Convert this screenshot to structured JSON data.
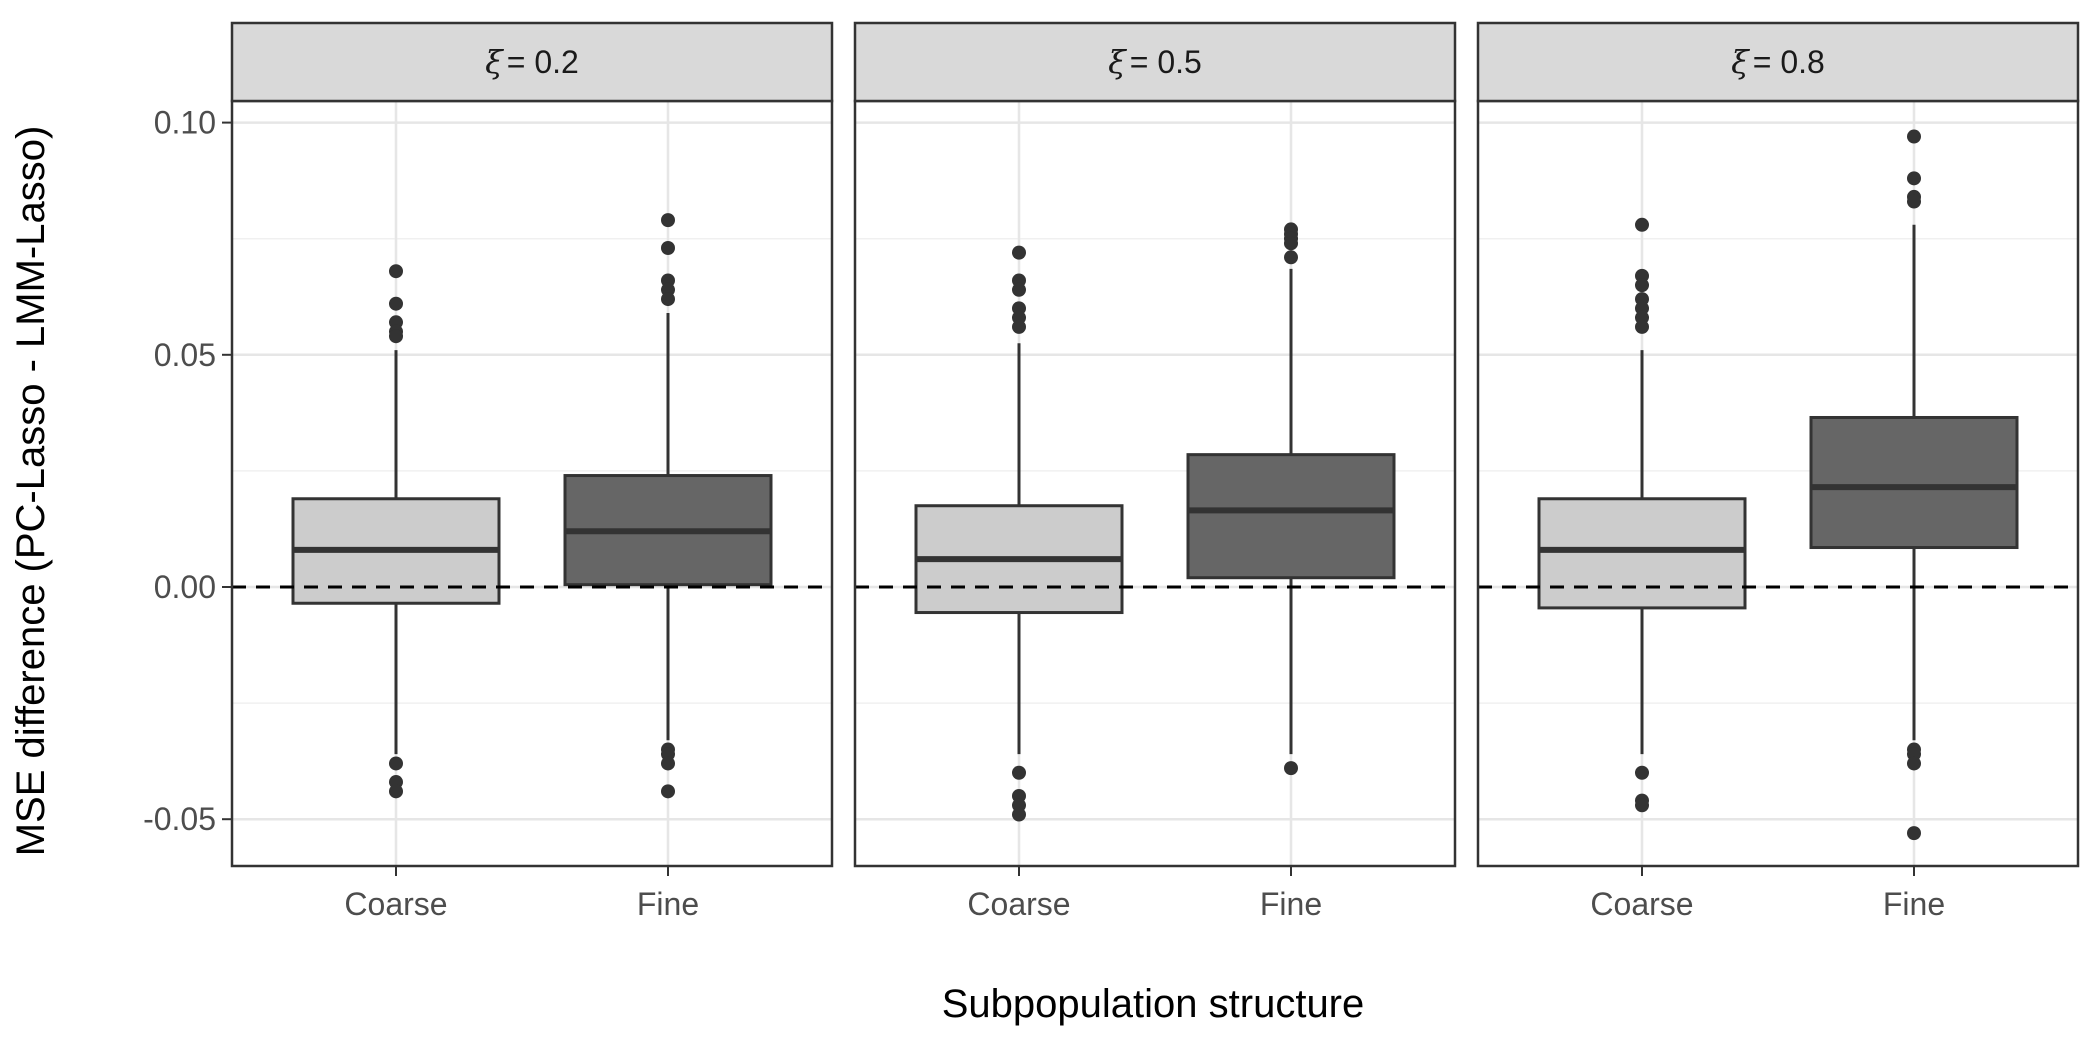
{
  "chart_data": {
    "type": "boxplot",
    "xlabel": "Subpopulation structure",
    "ylabel": "MSE difference (PC-Lasso - LMM-Lasso)",
    "ylim": [
      -0.06,
      0.105
    ],
    "yticks": [
      -0.05,
      0.0,
      0.05,
      0.1
    ],
    "ytick_labels": [
      "-0.05",
      "0.00",
      "0.05",
      "0.10"
    ],
    "categories": [
      "Coarse",
      "Fine"
    ],
    "reference_line": 0,
    "grid": true,
    "colors": {
      "Coarse": "#cccccc",
      "Fine": "#666666",
      "outline": "#333333"
    },
    "panels": [
      {
        "strip_symbol": "ξ",
        "strip_label": "= 0.2",
        "boxes": [
          {
            "category": "Coarse",
            "lower_whisker": -0.036,
            "q1": -0.0035,
            "median": 0.008,
            "q3": 0.019,
            "upper_whisker": 0.051,
            "outliers": [
              0.068,
              0.061,
              0.057,
              0.055,
              0.054,
              -0.038,
              -0.042,
              -0.044
            ]
          },
          {
            "category": "Fine",
            "lower_whisker": -0.033,
            "q1": 0.0005,
            "median": 0.012,
            "q3": 0.024,
            "upper_whisker": 0.059,
            "outliers": [
              0.079,
              0.073,
              0.066,
              0.064,
              0.062,
              -0.035,
              -0.036,
              -0.038,
              -0.044
            ]
          }
        ]
      },
      {
        "strip_symbol": "ξ",
        "strip_label": "= 0.5",
        "boxes": [
          {
            "category": "Coarse",
            "lower_whisker": -0.036,
            "q1": -0.0055,
            "median": 0.006,
            "q3": 0.0175,
            "upper_whisker": 0.0525,
            "outliers": [
              0.072,
              0.066,
              0.064,
              0.06,
              0.058,
              0.056,
              -0.04,
              -0.045,
              -0.047,
              -0.049
            ]
          },
          {
            "category": "Fine",
            "lower_whisker": -0.036,
            "q1": 0.002,
            "median": 0.0165,
            "q3": 0.0285,
            "upper_whisker": 0.0685,
            "outliers": [
              0.077,
              0.076,
              0.075,
              0.074,
              0.071,
              -0.039
            ]
          }
        ]
      },
      {
        "strip_symbol": "ξ",
        "strip_label": "= 0.8",
        "boxes": [
          {
            "category": "Coarse",
            "lower_whisker": -0.036,
            "q1": -0.0045,
            "median": 0.008,
            "q3": 0.019,
            "upper_whisker": 0.051,
            "outliers": [
              0.078,
              0.067,
              0.065,
              0.062,
              0.06,
              0.058,
              0.056,
              -0.04,
              -0.046,
              -0.047
            ]
          },
          {
            "category": "Fine",
            "lower_whisker": -0.033,
            "q1": 0.0085,
            "median": 0.0215,
            "q3": 0.0365,
            "upper_whisker": 0.078,
            "outliers": [
              0.097,
              0.088,
              0.084,
              0.083,
              -0.035,
              -0.036,
              -0.038,
              -0.053
            ]
          }
        ]
      }
    ]
  }
}
